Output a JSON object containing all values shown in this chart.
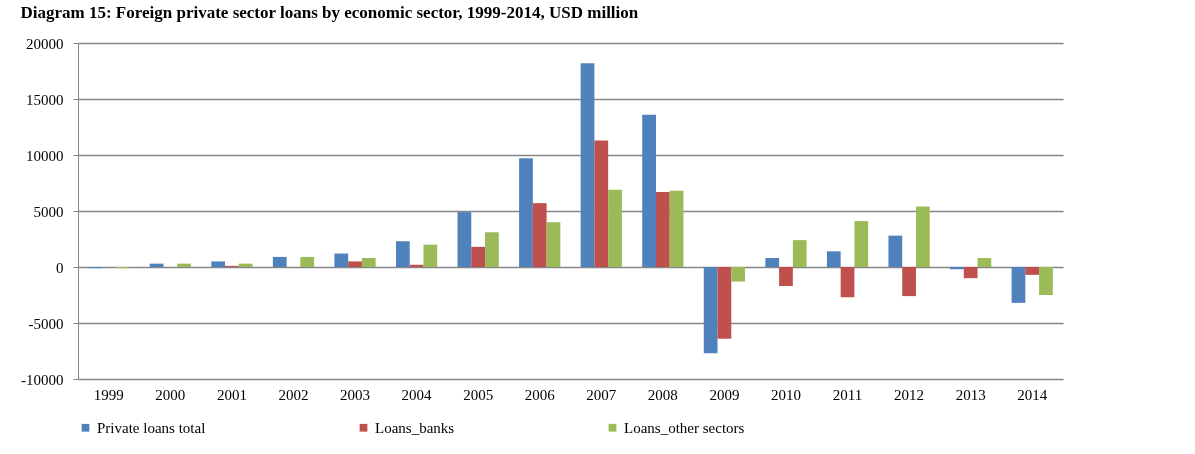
{
  "chart_data": {
    "type": "bar",
    "title": "Diagram 15:      Foreign private sector loans by economic sector, 1999-2014, USD million",
    "categories": [
      "1999",
      "2000",
      "2001",
      "2002",
      "2003",
      "2004",
      "2005",
      "2006",
      "2007",
      "2008",
      "2009",
      "2010",
      "2011",
      "2012",
      "2013",
      "2014"
    ],
    "series": [
      {
        "name": "Private loans total",
        "color": "#4f81bd",
        "values": [
          -100,
          300,
          500,
          900,
          1200,
          2300,
          4900,
          9700,
          18200,
          13600,
          -7700,
          800,
          1400,
          2800,
          -200,
          -3200
        ]
      },
      {
        "name": "Loans_banks",
        "color": "#c0504d",
        "values": [
          0,
          0,
          100,
          0,
          500,
          200,
          1800,
          5700,
          11300,
          6700,
          -6400,
          -1700,
          -2700,
          -2600,
          -1000,
          -700
        ]
      },
      {
        "name": "Loans_other sectors",
        "color": "#9bbb59",
        "values": [
          -100,
          300,
          300,
          900,
          800,
          2000,
          3100,
          4000,
          6900,
          6800,
          -1300,
          2400,
          4100,
          5400,
          800,
          -2500
        ]
      }
    ],
    "ylim": [
      -10000,
      20000
    ],
    "yticks": [
      -10000,
      -5000,
      0,
      5000,
      10000,
      15000,
      20000
    ],
    "grid": "y",
    "legend": "bottom"
  }
}
